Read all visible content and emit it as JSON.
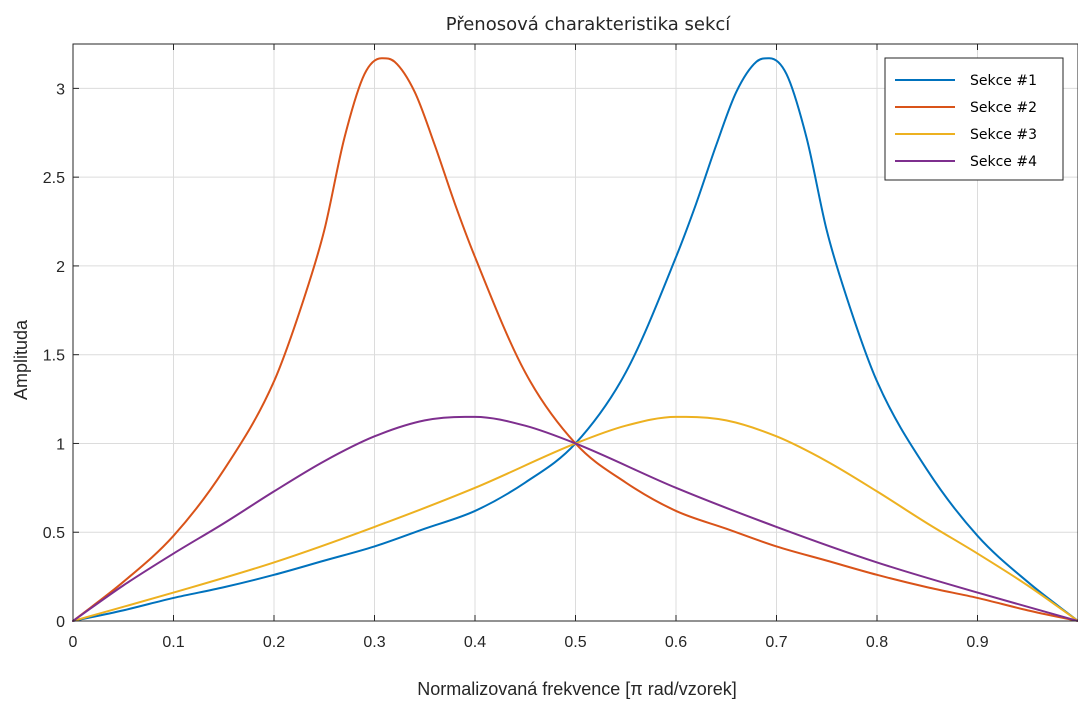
{
  "chart_data": {
    "type": "line",
    "title": "Přenosová charakteristika sekcí",
    "xlabel": "Normalizovaná frekvence [π rad/vzorek]",
    "ylabel": "Amplituda",
    "xlim": [
      0,
      1
    ],
    "ylim": [
      0,
      3.25
    ],
    "xticks": [
      0,
      0.1,
      0.2,
      0.3,
      0.4,
      0.5,
      0.6,
      0.7,
      0.8,
      0.9
    ],
    "xtick_labels": [
      "0",
      "0.1",
      "0.2",
      "0.3",
      "0.4",
      "0.5",
      "0.6",
      "0.7",
      "0.8",
      "0.9"
    ],
    "yticks": [
      0,
      0.5,
      1,
      1.5,
      2,
      2.5,
      3
    ],
    "ytick_labels": [
      "0",
      "0.5",
      "1",
      "1.5",
      "2",
      "2.5",
      "3"
    ],
    "grid": true,
    "legend_position": "top-right",
    "series": [
      {
        "name": "Sekce  #1",
        "color": "#0072BD",
        "x": [
          0,
          0.05,
          0.1,
          0.15,
          0.2,
          0.25,
          0.3,
          0.35,
          0.4,
          0.45,
          0.5,
          0.55,
          0.6,
          0.62,
          0.64,
          0.66,
          0.68,
          0.693,
          0.71,
          0.73,
          0.75,
          0.77,
          0.8,
          0.85,
          0.9,
          0.95,
          1.0
        ],
        "y": [
          0,
          0.06,
          0.13,
          0.19,
          0.26,
          0.34,
          0.42,
          0.52,
          0.62,
          0.78,
          1.0,
          1.4,
          2.05,
          2.35,
          2.68,
          2.98,
          3.15,
          3.17,
          3.08,
          2.72,
          2.2,
          1.82,
          1.35,
          0.85,
          0.48,
          0.22,
          0
        ]
      },
      {
        "name": "Sekce  #2",
        "color": "#D95319",
        "x": [
          0,
          0.05,
          0.1,
          0.15,
          0.2,
          0.23,
          0.25,
          0.27,
          0.29,
          0.307,
          0.32,
          0.34,
          0.36,
          0.38,
          0.4,
          0.45,
          0.5,
          0.55,
          0.6,
          0.65,
          0.7,
          0.75,
          0.8,
          0.85,
          0.9,
          0.95,
          1.0
        ],
        "y": [
          0,
          0.22,
          0.48,
          0.85,
          1.35,
          1.82,
          2.2,
          2.72,
          3.08,
          3.17,
          3.15,
          2.98,
          2.68,
          2.35,
          2.05,
          1.4,
          1.0,
          0.78,
          0.62,
          0.52,
          0.42,
          0.34,
          0.26,
          0.19,
          0.13,
          0.06,
          0
        ]
      },
      {
        "name": "Sekce  #3",
        "color": "#EDB120",
        "x": [
          0,
          0.1,
          0.2,
          0.3,
          0.4,
          0.5,
          0.55,
          0.6,
          0.61,
          0.65,
          0.7,
          0.75,
          0.8,
          0.85,
          0.9,
          0.95,
          1.0
        ],
        "y": [
          0,
          0.16,
          0.33,
          0.53,
          0.75,
          1.0,
          1.1,
          1.15,
          1.15,
          1.13,
          1.04,
          0.9,
          0.73,
          0.55,
          0.38,
          0.2,
          0
        ]
      },
      {
        "name": "Sekce  #4",
        "color": "#7E2F8E",
        "x": [
          0,
          0.05,
          0.1,
          0.15,
          0.2,
          0.25,
          0.3,
          0.35,
          0.39,
          0.4,
          0.45,
          0.5,
          0.6,
          0.7,
          0.8,
          0.9,
          1.0
        ],
        "y": [
          0,
          0.2,
          0.38,
          0.55,
          0.73,
          0.9,
          1.04,
          1.13,
          1.15,
          1.15,
          1.1,
          1.0,
          0.75,
          0.53,
          0.33,
          0.16,
          0
        ]
      }
    ]
  }
}
